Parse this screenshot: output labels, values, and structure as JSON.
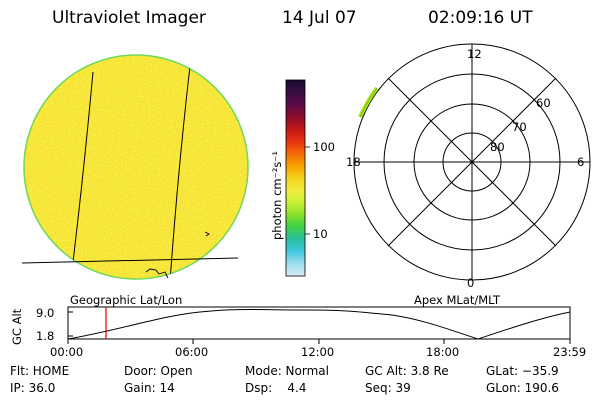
{
  "header": {
    "instrument": "Ultraviolet Imager",
    "date": "14 Jul 07",
    "time": "02:09:16 UT"
  },
  "geo_panel": {
    "label": "Geographic Lat/Lon"
  },
  "colorbar": {
    "unit_label": "photon cm⁻²s⁻¹",
    "tick_labels": [
      "100",
      "10"
    ],
    "colors": [
      "#1a0a2e",
      "#3a0d45",
      "#5c0a4a",
      "#8a0d2a",
      "#c01818",
      "#e83010",
      "#f26a08",
      "#f7a000",
      "#f5d21a",
      "#f0ee40",
      "#c8f034",
      "#88e02a",
      "#3dd04a",
      "#28c0a0",
      "#40c8e0",
      "#a0dcec",
      "#d8eef4"
    ]
  },
  "polar_panel": {
    "label": "Apex MLat/MLT",
    "lat_labels": [
      "60",
      "70",
      "80"
    ],
    "mlt_labels": [
      "12",
      "18",
      "6",
      "0"
    ]
  },
  "altitude_plot": {
    "ylabel": "GC Alt",
    "yticks": [
      "9.0",
      "1.8"
    ],
    "xticks": [
      "00:00",
      "06:00",
      "12:00",
      "18:00",
      "23:59"
    ]
  },
  "status": {
    "flt": "Flt: HOME",
    "door": "Door: Open",
    "mode": "Mode: Normal",
    "gc_alt": "GC Alt: 3.8 Re",
    "glat": "GLat: −35.9",
    "ip": "IP: 36.0",
    "gain": "Gain: 14",
    "dsp": "Dsp:    4.4",
    "seq": "Seq: 39",
    "glon": "GLon: 190.6"
  }
}
